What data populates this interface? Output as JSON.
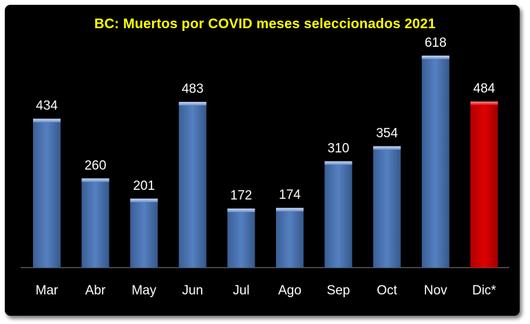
{
  "chart_data": {
    "type": "bar",
    "title": "BC: Muertos por COVID meses seleccionados 2021",
    "categories": [
      "Mar",
      "Abr",
      "May",
      "Jun",
      "Jul",
      "Ago",
      "Sep",
      "Oct",
      "Nov",
      "Dic*"
    ],
    "values": [
      434,
      260,
      201,
      483,
      172,
      174,
      310,
      354,
      618,
      484
    ],
    "ylim": [
      0,
      700
    ],
    "grid": false,
    "legend": "none",
    "colors": {
      "background": "#000000",
      "title": "#ffff00",
      "bar": "#4a72b0",
      "highlight_bar": "#cc0000",
      "labels": "#ffffff"
    },
    "highlight_index": 9
  }
}
